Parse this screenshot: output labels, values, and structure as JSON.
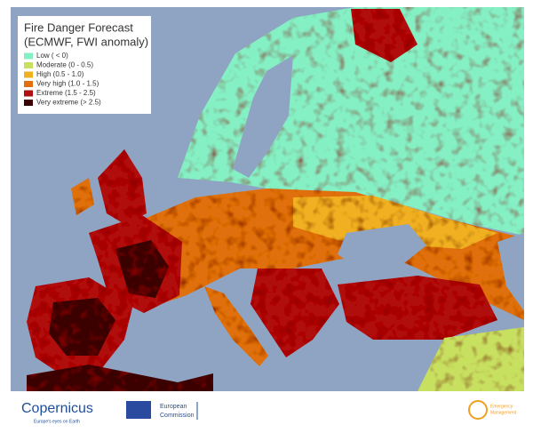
{
  "title": [
    "Fire Danger Forecast",
    "(ECMWF, FWI anomaly)"
  ],
  "legend": [
    {
      "label": "Low ( < 0)",
      "color": "#84f0c4"
    },
    {
      "label": "Moderate (0 - 0.5)",
      "color": "#c8e060"
    },
    {
      "label": "High (0.5 - 1.0)",
      "color": "#f0b020"
    },
    {
      "label": "Very high (1.0 - 1.5)",
      "color": "#e07010"
    },
    {
      "label": "Extreme (1.5 - 2.5)",
      "color": "#b01010"
    },
    {
      "label": "Very extreme (> 2.5)",
      "color": "#3a0000"
    }
  ],
  "footer": {
    "copernicus": "Copernicus",
    "copernicus_tagline": "Europe's eyes on Earth",
    "commission": [
      "European",
      "Commission"
    ],
    "emergency": [
      "Emergency",
      "Management"
    ]
  }
}
